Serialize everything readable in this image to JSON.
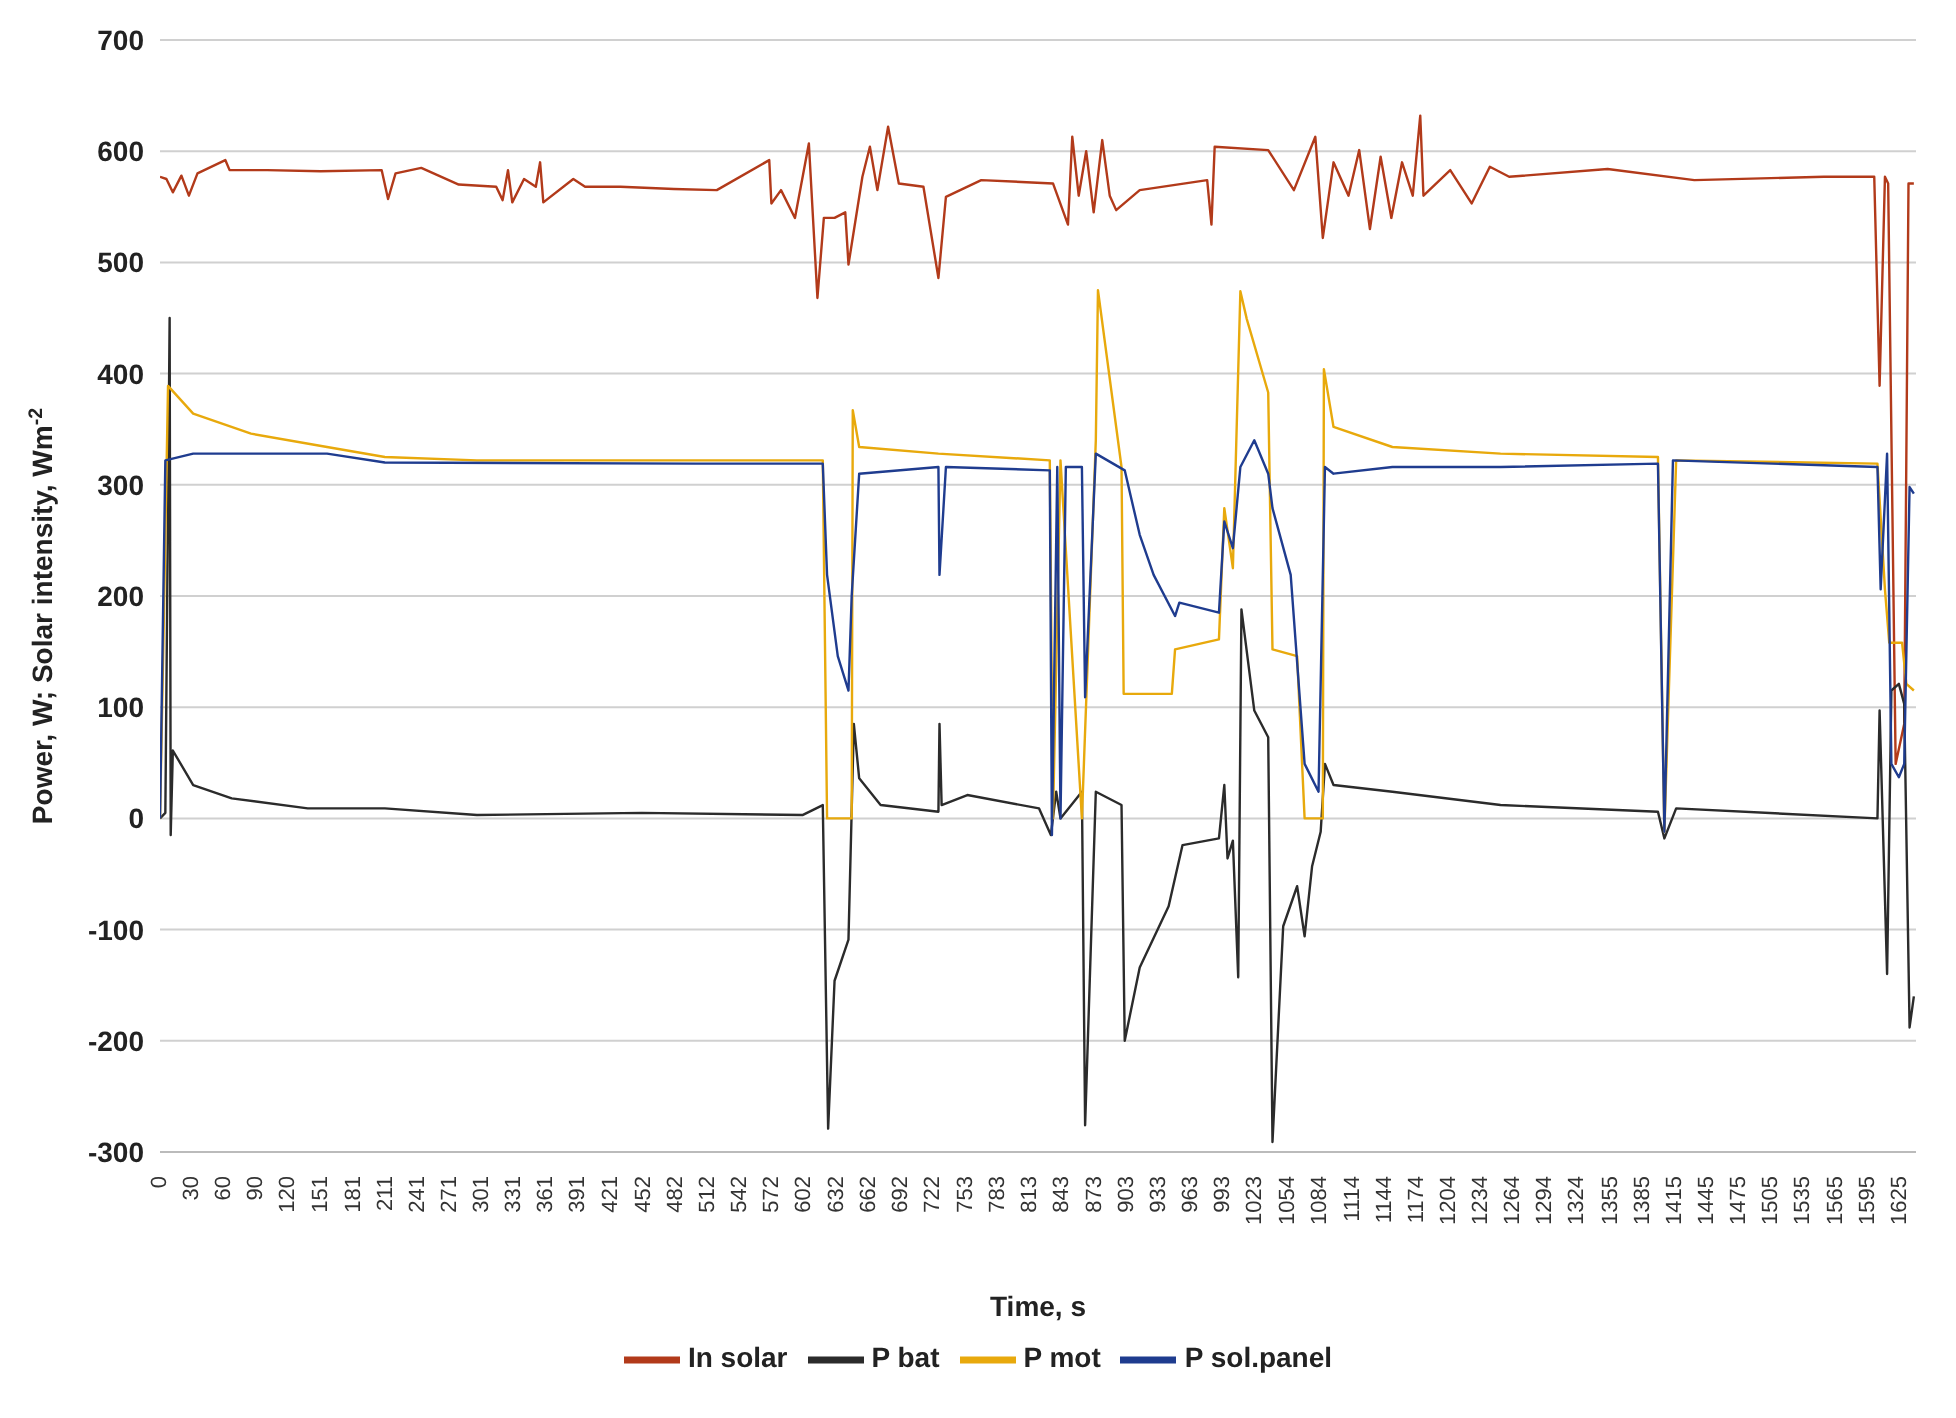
{
  "chart_data": {
    "type": "line",
    "xlabel": "Time, s",
    "ylabel": "Power, W; Solar intensity, Wm$^{-2}$",
    "xlim": [
      0,
      1640
    ],
    "xticks": [
      0,
      30,
      60,
      90,
      120,
      151,
      181,
      211,
      241,
      271,
      301,
      331,
      361,
      391,
      421,
      452,
      482,
      512,
      542,
      572,
      602,
      632,
      662,
      692,
      722,
      753,
      783,
      813,
      843,
      873,
      903,
      933,
      963,
      993,
      1023,
      1054,
      1084,
      1114,
      1144,
      1174,
      1204,
      1234,
      1264,
      1294,
      1324,
      1355,
      1385,
      1415,
      1445,
      1475,
      1505,
      1535,
      1565,
      1595,
      1625
    ],
    "ylim": [
      -300,
      700
    ],
    "yticks": [
      -300,
      -200,
      -100,
      0,
      100,
      200,
      300,
      400,
      500,
      600,
      700
    ],
    "grid": "y",
    "legend": "bottom",
    "marker": "none",
    "line_style": "solid",
    "series": [
      {
        "name": "In solar",
        "color": "#b23a1a",
        "x": [
          0,
          6,
          12,
          20,
          27,
          35,
          61,
          65,
          100,
          150,
          207,
          213,
          220,
          244,
          279,
          314,
          320,
          325,
          329,
          340,
          351,
          355,
          358,
          386,
          397,
          430,
          480,
          520,
          569,
          571,
          580,
          593,
          606,
          614,
          620,
          630,
          640,
          643,
          656,
          663,
          670,
          680,
          690,
          713,
          727,
          734,
          767,
          834,
          848,
          852,
          858,
          865,
          872,
          880,
          887,
          893,
          915,
          978,
          982,
          985,
          1035,
          1059,
          1079,
          1086,
          1096,
          1110,
          1120,
          1130,
          1140,
          1150,
          1160,
          1170,
          1177,
          1180,
          1205,
          1225,
          1242,
          1260,
          1352,
          1433,
          1554,
          1601,
          1606,
          1611,
          1614,
          1621,
          1629,
          1633,
          1638
        ],
        "values": [
          577,
          575,
          563,
          578,
          560,
          580,
          592,
          583,
          583,
          582,
          583,
          557,
          580,
          585,
          570,
          568,
          556,
          583,
          554,
          575,
          568,
          590,
          554,
          575,
          568,
          568,
          566,
          565,
          592,
          553,
          565,
          540,
          607,
          468,
          540,
          540,
          545,
          498,
          577,
          604,
          565,
          622,
          571,
          568,
          486,
          559,
          574,
          571,
          534,
          613,
          560,
          600,
          545,
          610,
          560,
          547,
          565,
          574,
          534,
          604,
          601,
          565,
          613,
          522,
          590,
          560,
          601,
          530,
          595,
          540,
          590,
          560,
          632,
          560,
          583,
          553,
          586,
          577,
          584,
          574,
          577,
          577,
          389,
          577,
          571,
          49,
          85,
          571,
          571
        ]
      },
      {
        "name": "P bat",
        "color": "#2b2b2b",
        "x": [
          0,
          5,
          9,
          10,
          12,
          31,
          67,
          138,
          210,
          296,
          450,
          600,
          619,
          624,
          630,
          643,
          648,
          653,
          673,
          727,
          728,
          730,
          754,
          821,
          832,
          837,
          841,
          861,
          864,
          874,
          898,
          901,
          915,
          942,
          955,
          989,
          994,
          997,
          1002,
          1007,
          1010,
          1022,
          1035,
          1039,
          1049,
          1062,
          1069,
          1076,
          1084,
          1088,
          1096,
          1151,
          1252,
          1399,
          1405,
          1416,
          1604,
          1606,
          1613,
          1617,
          1624,
          1629,
          1634,
          1638
        ],
        "values": [
          0,
          5,
          450,
          -15,
          61,
          30,
          18,
          9,
          9,
          3,
          5,
          3,
          12,
          -279,
          -146,
          -109,
          85,
          36,
          12,
          6,
          85,
          12,
          21,
          9,
          -15,
          24,
          0,
          24,
          -276,
          24,
          12,
          -200,
          -134,
          -79,
          -24,
          -18,
          30,
          -36,
          -20,
          -143,
          188,
          97,
          73,
          -291,
          -97,
          -61,
          -106,
          -43,
          -12,
          49,
          30,
          24,
          12,
          6,
          -18,
          9,
          0,
          97,
          -140,
          115,
          121,
          103,
          -188,
          -160
        ]
      },
      {
        "name": "P mot",
        "color": "#e8a90c",
        "x": [
          0,
          4,
          7.5,
          31,
          85,
          156,
          210,
          296,
          500,
          619,
          623,
          646,
          647,
          653,
          727,
          831,
          834,
          841,
          861,
          874,
          876,
          898,
          900,
          945,
          948,
          989,
          994,
          1002,
          1009,
          1015,
          1035,
          1039,
          1062,
          1069,
          1086,
          1087,
          1096,
          1151,
          1252,
          1399,
          1405,
          1416,
          1604,
          1611,
          1615,
          1627,
          1631,
          1638
        ],
        "values": [
          0,
          200,
          389,
          364,
          346,
          334,
          325,
          322,
          322,
          322,
          0,
          0,
          367,
          334,
          328,
          322,
          0,
          322,
          0,
          340,
          475,
          316,
          112,
          112,
          152,
          161,
          279,
          225,
          474,
          449,
          383,
          152,
          146,
          0,
          0,
          404,
          352,
          334,
          328,
          325,
          -12,
          322,
          319,
          206,
          158,
          158,
          121,
          115
        ]
      },
      {
        "name": "P sol.panel",
        "color": "#1f3c8f",
        "x": [
          0,
          5,
          31,
          156,
          210,
          500,
          619,
          623,
          633,
          643,
          646,
          653,
          727,
          728,
          734,
          831,
          833,
          838,
          841,
          846,
          861,
          864,
          874,
          901,
          915,
          928,
          948,
          952,
          989,
          994,
          1002,
          1009,
          1022,
          1035,
          1039,
          1056,
          1069,
          1082,
          1088,
          1096,
          1151,
          1252,
          1399,
          1405,
          1413,
          1604,
          1607,
          1613,
          1617,
          1624,
          1629,
          1634,
          1638
        ],
        "values": [
          0,
          322,
          328,
          328,
          320,
          319,
          319,
          219,
          146,
          115,
          200,
          310,
          316,
          219,
          316,
          313,
          -15,
          316,
          0,
          316,
          316,
          109,
          328,
          313,
          255,
          219,
          182,
          194,
          185,
          267,
          243,
          316,
          340,
          310,
          279,
          219,
          49,
          24,
          316,
          310,
          316,
          316,
          319,
          -12,
          322,
          316,
          206,
          328,
          49,
          37,
          49,
          298,
          292
        ]
      }
    ]
  }
}
